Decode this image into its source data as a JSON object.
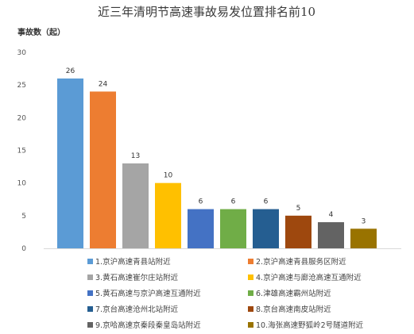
{
  "chart_data": {
    "type": "bar",
    "title": "近三年清明节高速事故易发位置排名前10",
    "ylabel": "事故数（起）",
    "xlabel": "",
    "ylim": [
      0,
      30
    ],
    "yticks": [
      0,
      5,
      10,
      15,
      20,
      25,
      30
    ],
    "grid": false,
    "legend_position": "bottom",
    "categories": [
      "1.京沪高速青县站附近",
      "2.京沪高速青县服务区附近",
      "3.黄石高速崔尔庄站附近",
      "4.京沪高速与廊沧高速互通附近",
      "5.黄石高速与京沪高速互通附近",
      "6.津雄高速霸州站附近",
      "7.京台高速沧州北站附近",
      "8.京台高速南皮站附近",
      "9.京哈高速京秦段秦皇岛站附近",
      "10.海张高速野狐岭2号隧道附近"
    ],
    "values": [
      26,
      24,
      13,
      10,
      6,
      6,
      6,
      5,
      4,
      3
    ],
    "colors": [
      "#5b9bd5",
      "#ed7d31",
      "#a5a5a5",
      "#ffc000",
      "#4472c4",
      "#70ad47",
      "#255e91",
      "#9e480e",
      "#636363",
      "#997300"
    ]
  }
}
